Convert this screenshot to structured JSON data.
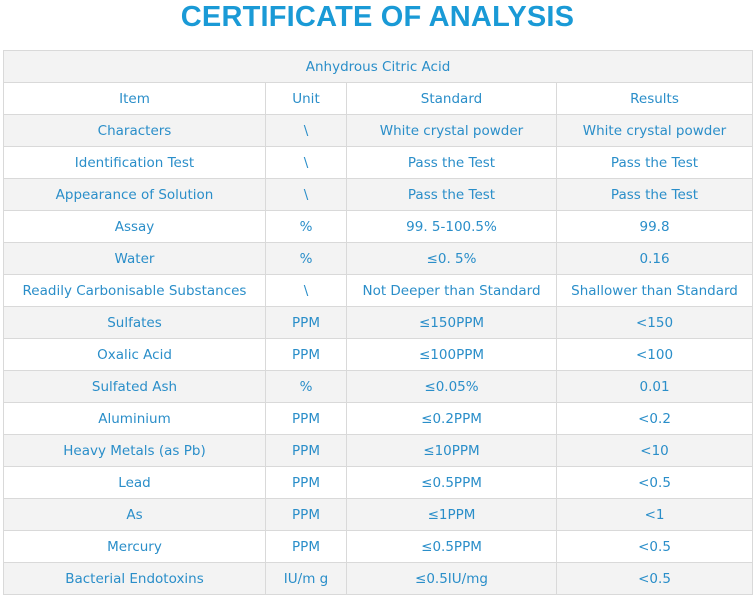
{
  "title": "CERTIFICATE OF ANALYSIS",
  "product": "Anhydrous Citric Acid",
  "headers": [
    "Item",
    "Unit",
    "Standard",
    "Results"
  ],
  "rows": [
    [
      "Characters",
      "\\",
      "White crystal powder",
      "White crystal powder"
    ],
    [
      "Identification Test",
      "\\",
      "Pass the Test",
      "Pass the Test"
    ],
    [
      "Appearance of Solution",
      "\\",
      "Pass the Test",
      "Pass the Test"
    ],
    [
      "Assay",
      "%",
      "99. 5-100.5%",
      "99.8"
    ],
    [
      "Water",
      "%",
      "≤0. 5%",
      "0.16"
    ],
    [
      "Readily Carbonisable Substances",
      "\\",
      "Not Deeper than Standard",
      "Shallower than Standard"
    ],
    [
      "Sulfates",
      "PPM",
      "≤150PPM",
      "<150"
    ],
    [
      "Oxalic Acid",
      "PPM",
      "≤100PPM",
      "<100"
    ],
    [
      "Sulfated Ash",
      "%",
      "≤0.05%",
      "0.01"
    ],
    [
      "Aluminium",
      "PPM",
      "≤0.2PPM",
      "<0.2"
    ],
    [
      "Heavy Metals (as Pb)",
      "PPM",
      "≤10PPM",
      "<10"
    ],
    [
      "Lead",
      "PPM",
      "≤0.5PPM",
      "<0.5"
    ],
    [
      "As",
      "PPM",
      "≤1PPM",
      "<1"
    ],
    [
      "Mercury",
      "PPM",
      "≤0.5PPM",
      "<0.5"
    ],
    [
      "Bacterial Endotoxins",
      "IU/m g",
      "≤0.5IU/mg",
      "<0.5"
    ]
  ],
  "colors": {
    "title": "#1a9ad6",
    "text": "#2a8ec9",
    "border": "#d9d9d9",
    "stripe": "#f3f3f3"
  }
}
